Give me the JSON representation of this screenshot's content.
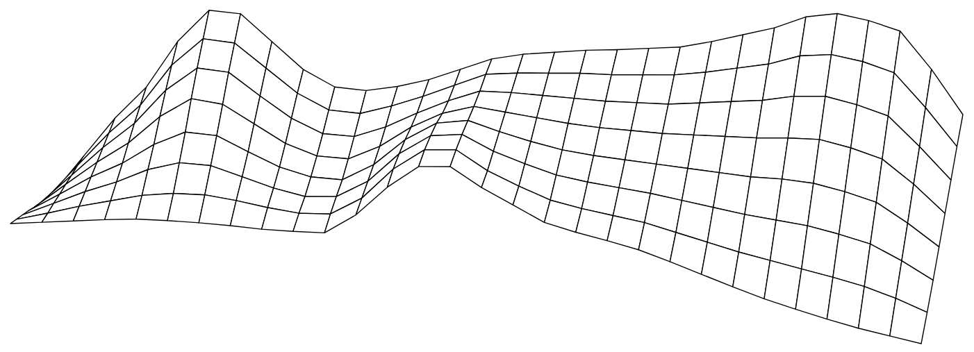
{
  "chart_data": {
    "type": "surface",
    "tick_labels": false,
    "color": "#000000",
    "z": [
      [
        0,
        8,
        16,
        24,
        31,
        35,
        38,
        40,
        41,
        44,
        48,
        80,
        126,
        162,
        168,
        144,
        125,
        106,
        98,
        92,
        85,
        74,
        62,
        50,
        39,
        30,
        22,
        15,
        10,
        5
      ],
      [
        4,
        19,
        35,
        49,
        63,
        72,
        76,
        74,
        70,
        68,
        73,
        102,
        150,
        184,
        190,
        166,
        150,
        136,
        130,
        126,
        122,
        114,
        106,
        98,
        92,
        86,
        80,
        73,
        62,
        48
      ],
      [
        8,
        31,
        54,
        74,
        98,
        114,
        116,
        106,
        96,
        90,
        96,
        124,
        170,
        202,
        210,
        192,
        180,
        170,
        166,
        164,
        162,
        158,
        154,
        150,
        148,
        146,
        140,
        132,
        114,
        92
      ],
      [
        12,
        42,
        73,
        99,
        132,
        156,
        157,
        140,
        124,
        116,
        118,
        146,
        188,
        218,
        228,
        218,
        210,
        204,
        202,
        202,
        202,
        202,
        202,
        202,
        205,
        205,
        199,
        190,
        166,
        138
      ],
      [
        15,
        54,
        92,
        126,
        170,
        202,
        200,
        178,
        156,
        144,
        146,
        170,
        204,
        230,
        246,
        244,
        242,
        240,
        240,
        242,
        244,
        248,
        252,
        256,
        262,
        266,
        260,
        250,
        220,
        184
      ],
      [
        19,
        65,
        111,
        152,
        206,
        244,
        244,
        216,
        190,
        174,
        176,
        196,
        222,
        246,
        266,
        270,
        272,
        274,
        276,
        280,
        284,
        292,
        300,
        308,
        320,
        326,
        320,
        310,
        272,
        230
      ],
      [
        23,
        77,
        130,
        176,
        240,
        284,
        284,
        254,
        224,
        206,
        207,
        224,
        244,
        266,
        288,
        296,
        302,
        308,
        312,
        318,
        324,
        334,
        346,
        358,
        376,
        384,
        380,
        370,
        326,
        276
      ],
      [
        27,
        88,
        149,
        200,
        272,
        323,
        324,
        290,
        256,
        237,
        238,
        250,
        266,
        287,
        308,
        321,
        330,
        339,
        346,
        354,
        362,
        376,
        392,
        408,
        430,
        441,
        437,
        428,
        379,
        320
      ]
    ]
  }
}
